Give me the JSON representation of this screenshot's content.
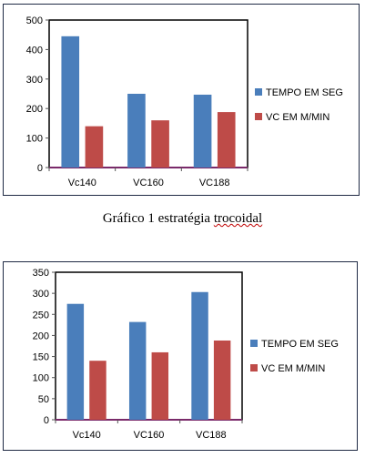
{
  "caption": {
    "prefix": "Gráfico 1 estratégia ",
    "underlined": "trocoidal"
  },
  "chart_data": [
    {
      "type": "bar",
      "categories": [
        "Vc140",
        "VC160",
        "VC188"
      ],
      "series": [
        {
          "name": "TEMPO EM SEG",
          "values": [
            445,
            250,
            247
          ],
          "color": "#4a7ebb"
        },
        {
          "name": "VC EM M/MIN",
          "values": [
            140,
            160,
            188
          ],
          "color": "#be4b48"
        }
      ],
      "ylim": [
        0,
        500
      ],
      "yticks": [
        0,
        100,
        200,
        300,
        400,
        500
      ],
      "grid": false,
      "legend": "right"
    },
    {
      "type": "bar",
      "categories": [
        "Vc140",
        "VC160",
        "VC188"
      ],
      "series": [
        {
          "name": "TEMPO EM SEG",
          "values": [
            275,
            232,
            303
          ],
          "color": "#4a7ebb"
        },
        {
          "name": "VC EM M/MIN",
          "values": [
            140,
            160,
            188
          ],
          "color": "#be4b48"
        }
      ],
      "ylim": [
        0,
        350
      ],
      "yticks": [
        0,
        50,
        100,
        150,
        200,
        250,
        300,
        350
      ],
      "grid": false,
      "legend": "right"
    }
  ]
}
